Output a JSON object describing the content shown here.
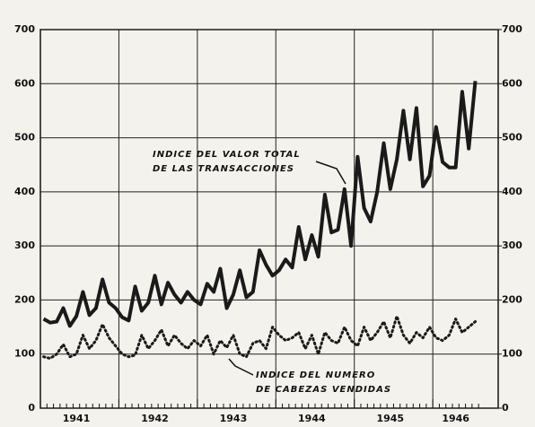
{
  "chart_data": {
    "type": "line",
    "categories": [
      null,
      null,
      null,
      null,
      null,
      "1941",
      null,
      null,
      null,
      null,
      null,
      null,
      null,
      null,
      null,
      null,
      null,
      "1942",
      null,
      null,
      null,
      null,
      null,
      null,
      null,
      null,
      null,
      null,
      null,
      "1943",
      null,
      null,
      null,
      null,
      null,
      null,
      null,
      null,
      null,
      null,
      null,
      "1944",
      null,
      null,
      null,
      null,
      null,
      null,
      null,
      null,
      null,
      null,
      null,
      "1945",
      null,
      null,
      null,
      null,
      null,
      null,
      null,
      null,
      null,
      "1946",
      null,
      null,
      null
    ],
    "series": [
      {
        "label_lines": [
          "INDICE DEL VALOR TOTAL",
          "DE LAS TRANSACCIONES"
        ],
        "color": "#1a1a1a",
        "style": "solid",
        "values": [
          165,
          158,
          160,
          185,
          152,
          170,
          215,
          172,
          185,
          238,
          195,
          185,
          168,
          162,
          225,
          180,
          195,
          245,
          192,
          232,
          210,
          195,
          215,
          200,
          192,
          230,
          215,
          258,
          185,
          210,
          255,
          205,
          215,
          292,
          265,
          245,
          255,
          275,
          260,
          335,
          275,
          320,
          280,
          395,
          325,
          330,
          405,
          300,
          465,
          370,
          345,
          400,
          490,
          405,
          460,
          550,
          460,
          555,
          410,
          430,
          520,
          455,
          445,
          445,
          585,
          480,
          605
        ]
      },
      {
        "label_lines": [
          "INDICE DEL NUMERO",
          "DE CABEZAS VENDIDAS"
        ],
        "color": "#1a1a1a",
        "style": "dotted",
        "values": [
          95,
          92,
          100,
          118,
          95,
          100,
          135,
          110,
          125,
          155,
          130,
          115,
          100,
          95,
          98,
          135,
          110,
          125,
          145,
          115,
          135,
          120,
          110,
          125,
          115,
          135,
          100,
          125,
          112,
          135,
          100,
          95,
          120,
          125,
          110,
          150,
          135,
          125,
          130,
          140,
          110,
          135,
          100,
          140,
          125,
          120,
          150,
          125,
          115,
          150,
          125,
          140,
          160,
          130,
          170,
          135,
          120,
          140,
          130,
          150,
          130,
          125,
          135,
          165,
          140,
          150,
          160
        ]
      }
    ],
    "ylim": [
      0,
      700
    ],
    "yticks": [
      0,
      100,
      200,
      300,
      400,
      500,
      600,
      700
    ],
    "y2lim": [
      0,
      700
    ],
    "y2ticks": [
      0,
      100,
      200,
      300,
      400,
      500,
      600,
      700
    ],
    "grid": true
  }
}
